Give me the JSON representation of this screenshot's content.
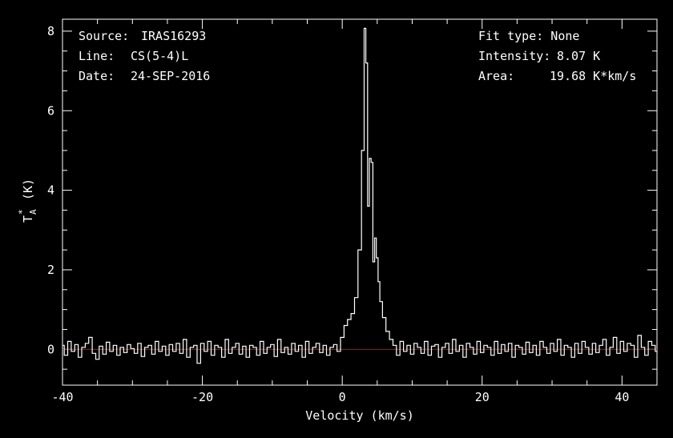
{
  "header_left": {
    "source_label": "Source:",
    "source_value": "IRAS16293",
    "line_label": "Line:",
    "line_value": "CS(5-4)L",
    "date_label": "Date:",
    "date_value": "24-SEP-2016"
  },
  "header_right": {
    "fit_type": "Fit type: None",
    "intensity_label": "Intensity:",
    "intensity_value": "8.07 K",
    "area_label": "Area:",
    "area_value": "19.68 K*km/s"
  },
  "chart_data": {
    "type": "line",
    "xlabel": "Velocity (km/s)",
    "ylabel": "T*A (K)",
    "ylabel_main": "T",
    "ylabel_sub": "A",
    "ylabel_sup": "*",
    "ylabel_unit": "(K)",
    "xlim": [
      -40,
      45
    ],
    "ylim": [
      -0.9,
      8.3
    ],
    "xticks": [
      -40,
      -20,
      0,
      20,
      40
    ],
    "yticks": [
      0,
      2,
      4,
      6,
      8
    ],
    "xtick_labels": [
      "-40",
      "-20",
      "0",
      "20",
      "40"
    ],
    "ytick_labels": [
      "0",
      "2",
      "4",
      "6",
      "8"
    ],
    "baseline": 0,
    "colors": {
      "spectrum": "#ffffff",
      "baseline": "#cc0000",
      "frame": "#ffffff"
    },
    "series": [
      {
        "style": "histogram",
        "x": [
          -40,
          -39.5,
          -39,
          -38.5,
          -38,
          -37.5,
          -37,
          -36.5,
          -36,
          -35.5,
          -35,
          -34.5,
          -34,
          -33.5,
          -33,
          -32.5,
          -32,
          -31.5,
          -31,
          -30.5,
          -30,
          -29.5,
          -29,
          -28.5,
          -28,
          -27.5,
          -27,
          -26.5,
          -26,
          -25.5,
          -25,
          -24.5,
          -24,
          -23.5,
          -23,
          -22.5,
          -22,
          -21.5,
          -21,
          -20.5,
          -20,
          -19.5,
          -19,
          -18.5,
          -18,
          -17.5,
          -17,
          -16.5,
          -16,
          -15.5,
          -15,
          -14.5,
          -14,
          -13.5,
          -13,
          -12.5,
          -12,
          -11.5,
          -11,
          -10.5,
          -10,
          -9.5,
          -9,
          -8.5,
          -8,
          -7.5,
          -7,
          -6.5,
          -6,
          -5.5,
          -5,
          -4.5,
          -4,
          -3.5,
          -3,
          -2.5,
          -2,
          -1.5,
          -1,
          -0.5,
          0,
          0.5,
          1,
          1.5,
          2,
          2.5,
          3,
          3.25,
          3.5,
          3.75,
          4,
          4.25,
          4.5,
          4.75,
          5,
          5.25,
          5.5,
          6,
          6.5,
          7,
          7.5,
          8,
          8.5,
          9,
          9.5,
          10,
          10.5,
          11,
          11.5,
          12,
          12.5,
          13,
          13.5,
          14,
          14.5,
          15,
          15.5,
          16,
          16.5,
          17,
          17.5,
          18,
          18.5,
          19,
          19.5,
          20,
          20.5,
          21,
          21.5,
          22,
          22.5,
          23,
          23.5,
          24,
          24.5,
          25,
          25.5,
          26,
          26.5,
          27,
          27.5,
          28,
          28.5,
          29,
          29.5,
          30,
          30.5,
          31,
          31.5,
          32,
          32.5,
          33,
          33.5,
          34,
          34.5,
          35,
          35.5,
          36,
          36.5,
          37,
          37.5,
          38,
          38.5,
          39,
          39.5,
          40,
          40.5,
          41,
          41.5,
          42,
          42.5,
          43,
          43.5,
          44,
          44.5,
          45
        ],
        "y": [
          0.1,
          -0.15,
          0.2,
          -0.05,
          0.12,
          -0.2,
          0.05,
          0.15,
          0.3,
          -0.1,
          -0.25,
          0.08,
          -0.12,
          0.18,
          -0.05,
          0.1,
          -0.15,
          0.05,
          -0.08,
          0.12,
          0.02,
          -0.1,
          0.15,
          -0.18,
          0.05,
          0.1,
          -0.12,
          0.2,
          -0.05,
          0.08,
          -0.15,
          0.12,
          -0.05,
          0.15,
          -0.1,
          0.25,
          -0.2,
          0.05,
          0.1,
          -0.35,
          0.15,
          -0.05,
          0.2,
          -0.15,
          0.1,
          0.05,
          -0.2,
          0.25,
          -0.1,
          0.05,
          0.15,
          -0.12,
          0.08,
          -0.2,
          0.1,
          0.05,
          -0.15,
          0.2,
          -0.1,
          0.05,
          0.12,
          -0.18,
          0.25,
          -0.08,
          0.05,
          -0.12,
          0.15,
          -0.05,
          0.1,
          -0.2,
          0.2,
          -0.1,
          0.05,
          0.15,
          -0.08,
          0.1,
          -0.15,
          0.05,
          0.12,
          -0.05,
          0.3,
          0.6,
          0.75,
          0.9,
          1.3,
          2.5,
          5.0,
          8.07,
          7.2,
          3.6,
          4.8,
          4.7,
          2.2,
          2.8,
          2.3,
          1.7,
          1.2,
          0.8,
          0.45,
          0.25,
          0.1,
          -0.15,
          0.2,
          -0.05,
          0.1,
          -0.12,
          0.15,
          0.05,
          -0.1,
          0.2,
          -0.15,
          0.08,
          0.12,
          -0.2,
          0.05,
          0.15,
          -0.1,
          0.25,
          -0.05,
          0.1,
          -0.2,
          0.15,
          0.05,
          -0.12,
          0.2,
          -0.08,
          0.1,
          0.05,
          -0.15,
          0.2,
          -0.1,
          0.12,
          -0.05,
          0.15,
          -0.2,
          0.1,
          0.05,
          -0.12,
          0.18,
          -0.08,
          0.1,
          -0.15,
          0.2,
          0.05,
          -0.1,
          0.15,
          -0.05,
          0.25,
          -0.15,
          0.1,
          0.05,
          -0.2,
          0.15,
          -0.1,
          0.2,
          0.05,
          -0.12,
          0.15,
          -0.08,
          0.1,
          0.25,
          -0.15,
          0.05,
          0.3,
          -0.1,
          0.2,
          -0.05,
          0.15,
          0.1,
          -0.2,
          0.35,
          0.05,
          -0.15,
          0.2,
          0.1,
          -0.05
        ]
      }
    ]
  }
}
